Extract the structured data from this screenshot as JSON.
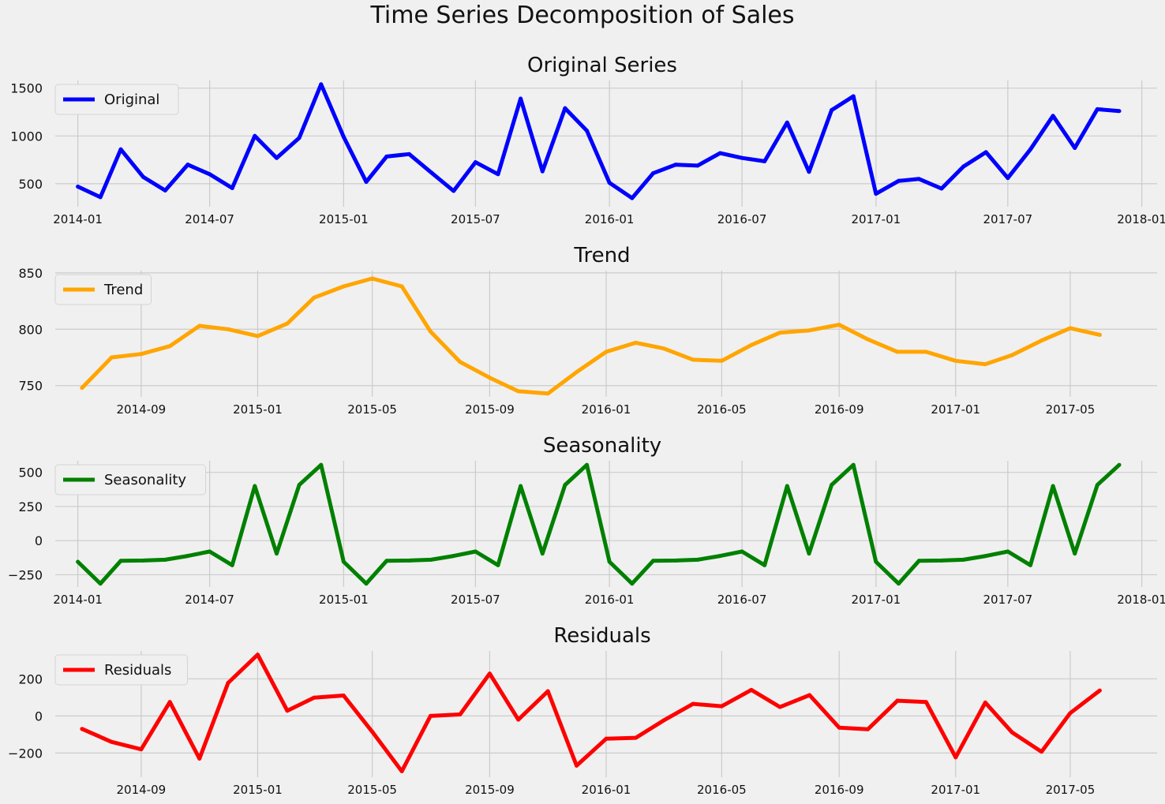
{
  "figure": {
    "title": "Time Series Decomposition of Sales"
  },
  "chart_data": [
    {
      "type": "line",
      "title": "Original Series",
      "legend": "upper-left",
      "grid": true,
      "x_kind": "date",
      "xlim": [
        "2013-12-01",
        "2018-01-22"
      ],
      "ylim": [
        260,
        1580
      ],
      "xticks": [
        {
          "date": "2014-01-01",
          "label": "2014-01"
        },
        {
          "date": "2014-07-01",
          "label": "2014-07"
        },
        {
          "date": "2015-01-01",
          "label": "2015-01"
        },
        {
          "date": "2015-07-01",
          "label": "2015-07"
        },
        {
          "date": "2016-01-01",
          "label": "2016-01"
        },
        {
          "date": "2016-07-01",
          "label": "2016-07"
        },
        {
          "date": "2017-01-01",
          "label": "2017-01"
        },
        {
          "date": "2017-07-01",
          "label": "2017-07"
        },
        {
          "date": "2018-01-01",
          "label": "2018-01"
        }
      ],
      "yticks": [
        {
          "v": 500,
          "label": "500"
        },
        {
          "v": 1000,
          "label": "1000"
        },
        {
          "v": 1500,
          "label": "1500"
        }
      ],
      "series": [
        {
          "name": "Original",
          "color": "#0000ff",
          "x": [
            "2014-01-01",
            "2014-02-01",
            "2014-03-01",
            "2014-04-01",
            "2014-05-01",
            "2014-06-01",
            "2014-07-01",
            "2014-08-01",
            "2014-09-01",
            "2014-10-01",
            "2014-11-01",
            "2014-12-01",
            "2015-01-01",
            "2015-02-01",
            "2015-03-01",
            "2015-04-01",
            "2015-05-01",
            "2015-06-01",
            "2015-07-01",
            "2015-08-01",
            "2015-09-01",
            "2015-10-01",
            "2015-11-01",
            "2015-12-01",
            "2016-01-01",
            "2016-02-01",
            "2016-03-01",
            "2016-04-01",
            "2016-05-01",
            "2016-06-01",
            "2016-07-01",
            "2016-08-01",
            "2016-09-01",
            "2016-10-01",
            "2016-11-01",
            "2016-12-01",
            "2017-01-01",
            "2017-02-01",
            "2017-03-01",
            "2017-04-01",
            "2017-05-01",
            "2017-06-01",
            "2017-07-01",
            "2017-08-01",
            "2017-09-01",
            "2017-10-01",
            "2017-11-01",
            "2017-12-01"
          ],
          "y": [
            470,
            360,
            860,
            570,
            430,
            700,
            600,
            455,
            1000,
            770,
            980,
            1540,
            990,
            520,
            785,
            810,
            620,
            425,
            725,
            600,
            1390,
            630,
            1290,
            1055,
            510,
            350,
            610,
            700,
            690,
            820,
            770,
            735,
            1140,
            625,
            1270,
            1415,
            395,
            530,
            550,
            450,
            680,
            830,
            560,
            860,
            1210,
            875,
            1280,
            1260
          ]
        }
      ]
    },
    {
      "type": "line",
      "title": "Trend",
      "legend": "upper-left",
      "grid": true,
      "x_kind": "date",
      "xlim": [
        "2014-06-03",
        "2017-07-31"
      ],
      "ylim": [
        740,
        852
      ],
      "xticks": [
        {
          "date": "2014-09-01",
          "label": "2014-09"
        },
        {
          "date": "2015-01-01",
          "label": "2015-01"
        },
        {
          "date": "2015-05-01",
          "label": "2015-05"
        },
        {
          "date": "2015-09-01",
          "label": "2015-09"
        },
        {
          "date": "2016-01-01",
          "label": "2016-01"
        },
        {
          "date": "2016-05-01",
          "label": "2016-05"
        },
        {
          "date": "2016-09-01",
          "label": "2016-09"
        },
        {
          "date": "2017-01-01",
          "label": "2017-01"
        },
        {
          "date": "2017-05-01",
          "label": "2017-05"
        }
      ],
      "yticks": [
        {
          "v": 750,
          "label": "750"
        },
        {
          "v": 800,
          "label": "800"
        },
        {
          "v": 850,
          "label": "850"
        }
      ],
      "series": [
        {
          "name": "Trend",
          "color": "#ffa500",
          "x": [
            "2014-07-01",
            "2014-08-01",
            "2014-09-01",
            "2014-10-01",
            "2014-11-01",
            "2014-12-01",
            "2015-01-01",
            "2015-02-01",
            "2015-03-01",
            "2015-04-01",
            "2015-05-01",
            "2015-06-01",
            "2015-07-01",
            "2015-08-01",
            "2015-09-01",
            "2015-10-01",
            "2015-11-01",
            "2015-12-01",
            "2016-01-01",
            "2016-02-01",
            "2016-03-01",
            "2016-04-01",
            "2016-05-01",
            "2016-06-01",
            "2016-07-01",
            "2016-08-01",
            "2016-09-01",
            "2016-10-01",
            "2016-11-01",
            "2016-12-01",
            "2017-01-01",
            "2017-02-01",
            "2017-03-01",
            "2017-04-01",
            "2017-05-01",
            "2017-06-01"
          ],
          "y": [
            748,
            775,
            778,
            785,
            803,
            800,
            794,
            805,
            828,
            838,
            845,
            838,
            798,
            771,
            757,
            745,
            743,
            762,
            780,
            788,
            783,
            773,
            772,
            786,
            797,
            799,
            804,
            791,
            780,
            780,
            772,
            769,
            777,
            790,
            801,
            795
          ]
        }
      ]
    },
    {
      "type": "line",
      "title": "Seasonality",
      "legend": "upper-left",
      "grid": true,
      "x_kind": "date",
      "xlim": [
        "2013-12-01",
        "2018-01-22"
      ],
      "ylim": [
        -340,
        585
      ],
      "xticks": [
        {
          "date": "2014-01-01",
          "label": "2014-01"
        },
        {
          "date": "2014-07-01",
          "label": "2014-07"
        },
        {
          "date": "2015-01-01",
          "label": "2015-01"
        },
        {
          "date": "2015-07-01",
          "label": "2015-07"
        },
        {
          "date": "2016-01-01",
          "label": "2016-01"
        },
        {
          "date": "2016-07-01",
          "label": "2016-07"
        },
        {
          "date": "2017-01-01",
          "label": "2017-01"
        },
        {
          "date": "2017-07-01",
          "label": "2017-07"
        },
        {
          "date": "2018-01-01",
          "label": "2018-01"
        }
      ],
      "yticks": [
        {
          "v": -250,
          "label": "−250"
        },
        {
          "v": 0,
          "label": "0"
        },
        {
          "v": 250,
          "label": "250"
        },
        {
          "v": 500,
          "label": "500"
        }
      ],
      "series": [
        {
          "name": "Seasonality",
          "color": "#008000",
          "x": [
            "2014-01-01",
            "2014-02-01",
            "2014-03-01",
            "2014-04-01",
            "2014-05-01",
            "2014-06-01",
            "2014-07-01",
            "2014-08-01",
            "2014-09-01",
            "2014-10-01",
            "2014-11-01",
            "2014-12-01",
            "2015-01-01",
            "2015-02-01",
            "2015-03-01",
            "2015-04-01",
            "2015-05-01",
            "2015-06-01",
            "2015-07-01",
            "2015-08-01",
            "2015-09-01",
            "2015-10-01",
            "2015-11-01",
            "2015-12-01",
            "2016-01-01",
            "2016-02-01",
            "2016-03-01",
            "2016-04-01",
            "2016-05-01",
            "2016-06-01",
            "2016-07-01",
            "2016-08-01",
            "2016-09-01",
            "2016-10-01",
            "2016-11-01",
            "2016-12-01",
            "2017-01-01",
            "2017-02-01",
            "2017-03-01",
            "2017-04-01",
            "2017-05-01",
            "2017-06-01",
            "2017-07-01",
            "2017-08-01",
            "2017-09-01",
            "2017-10-01",
            "2017-11-01",
            "2017-12-01"
          ],
          "y": [
            -155,
            -315,
            -148,
            -146,
            -140,
            -112,
            -80,
            -180,
            400,
            -95,
            408,
            555,
            -155,
            -315,
            -148,
            -146,
            -140,
            -112,
            -80,
            -180,
            400,
            -95,
            408,
            555,
            -155,
            -315,
            -148,
            -146,
            -140,
            -112,
            -80,
            -180,
            400,
            -95,
            408,
            555,
            -155,
            -315,
            -148,
            -146,
            -140,
            -112,
            -80,
            -180,
            400,
            -95,
            408,
            555
          ]
        }
      ]
    },
    {
      "type": "line",
      "title": "Residuals",
      "legend": "upper-left",
      "grid": true,
      "x_kind": "date",
      "xlim": [
        "2014-06-03",
        "2017-07-31"
      ],
      "ylim": [
        -330,
        350
      ],
      "xticks": [
        {
          "date": "2014-09-01",
          "label": "2014-09"
        },
        {
          "date": "2015-01-01",
          "label": "2015-01"
        },
        {
          "date": "2015-05-01",
          "label": "2015-05"
        },
        {
          "date": "2015-09-01",
          "label": "2015-09"
        },
        {
          "date": "2016-01-01",
          "label": "2016-01"
        },
        {
          "date": "2016-05-01",
          "label": "2016-05"
        },
        {
          "date": "2016-09-01",
          "label": "2016-09"
        },
        {
          "date": "2017-01-01",
          "label": "2017-01"
        },
        {
          "date": "2017-05-01",
          "label": "2017-05"
        }
      ],
      "yticks": [
        {
          "v": -200,
          "label": "−200"
        },
        {
          "v": 0,
          "label": "0"
        },
        {
          "v": 200,
          "label": "200"
        }
      ],
      "series": [
        {
          "name": "Residuals",
          "color": "#ff0000",
          "x": [
            "2014-07-01",
            "2014-08-01",
            "2014-09-01",
            "2014-10-01",
            "2014-11-01",
            "2014-12-01",
            "2015-01-01",
            "2015-02-01",
            "2015-03-01",
            "2015-04-01",
            "2015-05-01",
            "2015-06-01",
            "2015-07-01",
            "2015-08-01",
            "2015-09-01",
            "2015-10-01",
            "2015-11-01",
            "2015-12-01",
            "2016-01-01",
            "2016-02-01",
            "2016-03-01",
            "2016-04-01",
            "2016-05-01",
            "2016-06-01",
            "2016-07-01",
            "2016-08-01",
            "2016-09-01",
            "2016-10-01",
            "2016-11-01",
            "2016-12-01",
            "2017-01-01",
            "2017-02-01",
            "2017-03-01",
            "2017-04-01",
            "2017-05-01",
            "2017-06-01"
          ],
          "y": [
            -70,
            -140,
            -180,
            75,
            -230,
            178,
            330,
            28,
            98,
            110,
            -85,
            -298,
            0,
            8,
            228,
            -20,
            133,
            -268,
            -123,
            -118,
            -25,
            65,
            52,
            140,
            48,
            112,
            -63,
            -72,
            82,
            75,
            -223,
            72,
            -88,
            -193,
            15,
            137
          ]
        }
      ]
    }
  ]
}
